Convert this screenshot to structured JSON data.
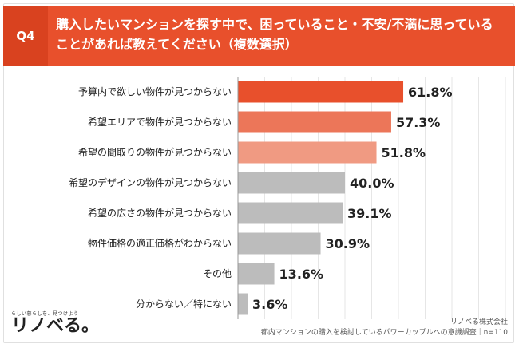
{
  "header": {
    "badge": "Q4",
    "question": "購入したいマンションを探す中で、困っていること・不安/不満に思っていることがあれば教えてください（複数選択）"
  },
  "chart_data": {
    "type": "bar",
    "orientation": "horizontal",
    "categories": [
      "予算内で欲しい物件が見つからない",
      "希望エリアで物件が見つからない",
      "希望の間取りの物件が見つからない",
      "希望のデザインの物件が見つからない",
      "希望の広さの物件が見つからない",
      "物件価格の適正価格がわからない",
      "その他",
      "分からない／特にない"
    ],
    "values": [
      61.8,
      57.3,
      51.8,
      40.0,
      39.1,
      30.9,
      13.6,
      3.6
    ],
    "value_labels": [
      "61.8%",
      "57.3%",
      "51.8%",
      "40.0%",
      "39.1%",
      "30.9%",
      "13.6%",
      "3.6%"
    ],
    "bar_colors": [
      "#e8502c",
      "#ec7659",
      "#f09a82",
      "#bcbcbc",
      "#bcbcbc",
      "#bcbcbc",
      "#bcbcbc",
      "#bcbcbc"
    ],
    "xlim": [
      0,
      100
    ],
    "grid": true
  },
  "logo": {
    "tagline": "らしい暮らしを、見つけよう",
    "name": "リノベる。"
  },
  "footer": {
    "company": "リノベる株式会社",
    "survey": "都内マンションの購入を検討しているパワーカップルへの意識調査｜n=110"
  }
}
